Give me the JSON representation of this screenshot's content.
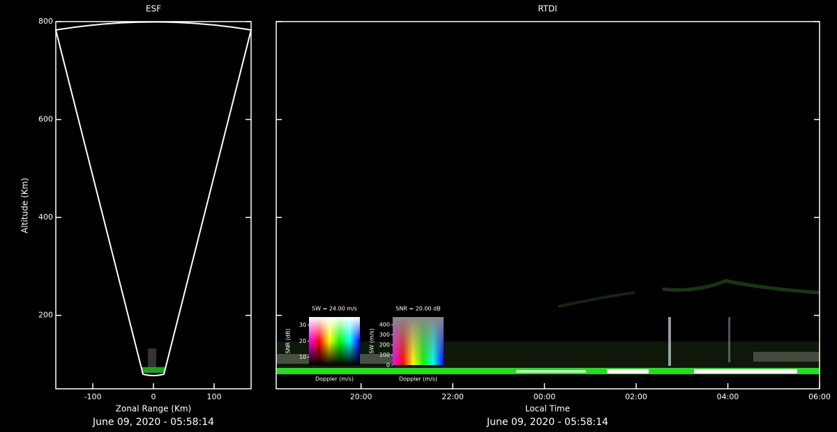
{
  "chart_data": [
    {
      "type": "heatmap",
      "title": "ESF",
      "xlabel": "Zonal Range (Km)",
      "ylabel": "Altitude (Km)",
      "timestamp": "June 09, 2020 - 05:58:14",
      "xlim": [
        -161,
        161
      ],
      "xticks": [
        -100,
        0,
        100
      ],
      "ylim": [
        50,
        800
      ],
      "yticks": [
        200,
        400,
        600,
        800
      ]
    },
    {
      "type": "heatmap",
      "title": "RTDI",
      "xlabel": "Local Time",
      "timestamp": "June 09, 2020 - 05:58:14",
      "xlim": [
        18.15,
        30
      ],
      "xticks": [
        {
          "value": 20,
          "label": "20:00"
        },
        {
          "value": 22,
          "label": "22:00"
        },
        {
          "value": 24,
          "label": "00:00"
        },
        {
          "value": 26,
          "label": "02:00"
        },
        {
          "value": 28,
          "label": "04:00"
        },
        {
          "value": 30,
          "label": "06:00"
        }
      ],
      "ylim": [
        50,
        800
      ],
      "yticks": [
        200,
        400,
        600,
        800
      ],
      "colorkeys": [
        {
          "title": "SW = 24.00 m/s",
          "ylabel": "SNR (dB)",
          "xlabel": "Doppler (m/s)",
          "ylim": [
            5,
            35
          ],
          "yticks": [
            10,
            20,
            30
          ]
        },
        {
          "title": "SNR = 20.00 dB",
          "ylabel": "SW (m/s)",
          "xlabel": "Doppler (m/s)",
          "ylim": [
            0,
            476
          ],
          "yticks": [
            0,
            100,
            200,
            300,
            400
          ]
        }
      ]
    }
  ]
}
